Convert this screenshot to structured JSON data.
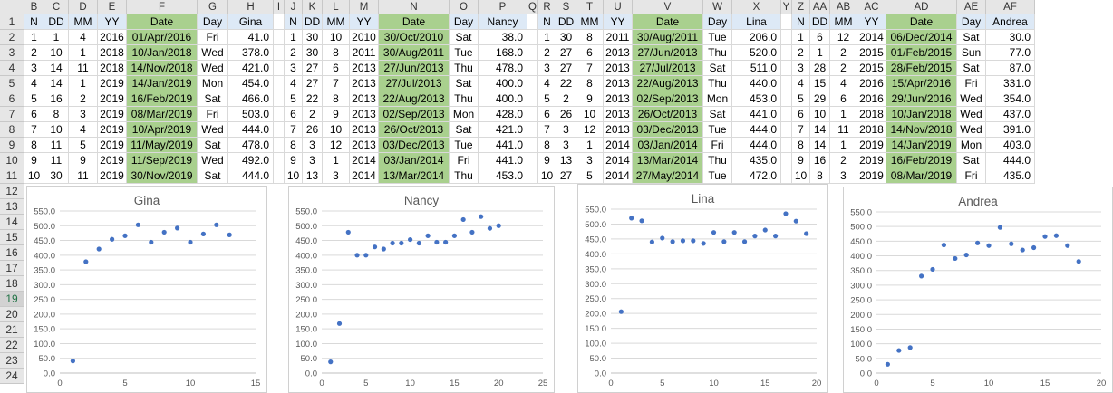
{
  "column_headers": [
    "B",
    "C",
    "D",
    "E",
    "F",
    "G",
    "H",
    "I",
    "J",
    "K",
    "L",
    "M",
    "N",
    "O",
    "P",
    "Q",
    "R",
    "S",
    "T",
    "U",
    "V",
    "W",
    "X",
    "Y",
    "Z",
    "AA",
    "AB",
    "AC",
    "AD",
    "AE",
    "AF"
  ],
  "row_headers": [
    "1",
    "2",
    "3",
    "4",
    "5",
    "6",
    "7",
    "8",
    "9",
    "10",
    "11",
    "12",
    "13",
    "14",
    "15",
    "16",
    "17",
    "18",
    "19",
    "20",
    "21",
    "22",
    "23",
    "24"
  ],
  "selected_row": "19",
  "colors": {
    "header_fill": "#dde9f6",
    "date_fill": "#a9d08e",
    "marker": "#4472c4",
    "gridline": "#d9d9d9"
  },
  "tables": [
    {
      "headers": [
        "N",
        "DD",
        "MM",
        "YY",
        "Date",
        "Day",
        "Gina"
      ],
      "rows": [
        [
          "1",
          "1",
          "4",
          "2016",
          "01/Apr/2016",
          "Fri",
          "41.0"
        ],
        [
          "2",
          "10",
          "1",
          "2018",
          "10/Jan/2018",
          "Wed",
          "378.0"
        ],
        [
          "3",
          "14",
          "11",
          "2018",
          "14/Nov/2018",
          "Wed",
          "421.0"
        ],
        [
          "4",
          "14",
          "1",
          "2019",
          "14/Jan/2019",
          "Mon",
          "454.0"
        ],
        [
          "5",
          "16",
          "2",
          "2019",
          "16/Feb/2019",
          "Sat",
          "466.0"
        ],
        [
          "6",
          "8",
          "3",
          "2019",
          "08/Mar/2019",
          "Fri",
          "503.0"
        ],
        [
          "7",
          "10",
          "4",
          "2019",
          "10/Apr/2019",
          "Wed",
          "444.0"
        ],
        [
          "8",
          "11",
          "5",
          "2019",
          "11/May/2019",
          "Sat",
          "478.0"
        ],
        [
          "9",
          "11",
          "9",
          "2019",
          "11/Sep/2019",
          "Wed",
          "492.0"
        ],
        [
          "10",
          "30",
          "11",
          "2019",
          "30/Nov/2019",
          "Sat",
          "444.0"
        ]
      ]
    },
    {
      "headers": [
        "N",
        "DD",
        "MM",
        "YY",
        "Date",
        "Day",
        "Nancy"
      ],
      "rows": [
        [
          "1",
          "30",
          "10",
          "2010",
          "30/Oct/2010",
          "Sat",
          "38.0"
        ],
        [
          "2",
          "30",
          "8",
          "2011",
          "30/Aug/2011",
          "Tue",
          "168.0"
        ],
        [
          "3",
          "27",
          "6",
          "2013",
          "27/Jun/2013",
          "Thu",
          "478.0"
        ],
        [
          "4",
          "27",
          "7",
          "2013",
          "27/Jul/2013",
          "Sat",
          "400.0"
        ],
        [
          "5",
          "22",
          "8",
          "2013",
          "22/Aug/2013",
          "Thu",
          "400.0"
        ],
        [
          "6",
          "2",
          "9",
          "2013",
          "02/Sep/2013",
          "Mon",
          "428.0"
        ],
        [
          "7",
          "26",
          "10",
          "2013",
          "26/Oct/2013",
          "Sat",
          "421.0"
        ],
        [
          "8",
          "3",
          "12",
          "2013",
          "03/Dec/2013",
          "Tue",
          "441.0"
        ],
        [
          "9",
          "3",
          "1",
          "2014",
          "03/Jan/2014",
          "Fri",
          "441.0"
        ],
        [
          "10",
          "13",
          "3",
          "2014",
          "13/Mar/2014",
          "Thu",
          "453.0"
        ]
      ]
    },
    {
      "headers": [
        "N",
        "DD",
        "MM",
        "YY",
        "Date",
        "Day",
        "Lina"
      ],
      "rows": [
        [
          "1",
          "30",
          "8",
          "2011",
          "30/Aug/2011",
          "Tue",
          "206.0"
        ],
        [
          "2",
          "27",
          "6",
          "2013",
          "27/Jun/2013",
          "Thu",
          "520.0"
        ],
        [
          "3",
          "27",
          "7",
          "2013",
          "27/Jul/2013",
          "Sat",
          "511.0"
        ],
        [
          "4",
          "22",
          "8",
          "2013",
          "22/Aug/2013",
          "Thu",
          "440.0"
        ],
        [
          "5",
          "2",
          "9",
          "2013",
          "02/Sep/2013",
          "Mon",
          "453.0"
        ],
        [
          "6",
          "26",
          "10",
          "2013",
          "26/Oct/2013",
          "Sat",
          "441.0"
        ],
        [
          "7",
          "3",
          "12",
          "2013",
          "03/Dec/2013",
          "Tue",
          "444.0"
        ],
        [
          "8",
          "3",
          "1",
          "2014",
          "03/Jan/2014",
          "Fri",
          "444.0"
        ],
        [
          "9",
          "13",
          "3",
          "2014",
          "13/Mar/2014",
          "Thu",
          "435.0"
        ],
        [
          "10",
          "27",
          "5",
          "2014",
          "27/May/2014",
          "Tue",
          "472.0"
        ]
      ]
    },
    {
      "headers": [
        "N",
        "DD",
        "MM",
        "YY",
        "Date",
        "Day",
        "Andrea"
      ],
      "rows": [
        [
          "1",
          "6",
          "12",
          "2014",
          "06/Dec/2014",
          "Sat",
          "30.0"
        ],
        [
          "2",
          "1",
          "2",
          "2015",
          "01/Feb/2015",
          "Sun",
          "77.0"
        ],
        [
          "3",
          "28",
          "2",
          "2015",
          "28/Feb/2015",
          "Sat",
          "87.0"
        ],
        [
          "4",
          "15",
          "4",
          "2016",
          "15/Apr/2016",
          "Fri",
          "331.0"
        ],
        [
          "5",
          "29",
          "6",
          "2016",
          "29/Jun/2016",
          "Wed",
          "354.0"
        ],
        [
          "6",
          "10",
          "1",
          "2018",
          "10/Jan/2018",
          "Wed",
          "437.0"
        ],
        [
          "7",
          "14",
          "11",
          "2018",
          "14/Nov/2018",
          "Wed",
          "391.0"
        ],
        [
          "8",
          "14",
          "1",
          "2019",
          "14/Jan/2019",
          "Mon",
          "403.0"
        ],
        [
          "9",
          "16",
          "2",
          "2019",
          "16/Feb/2019",
          "Sat",
          "444.0"
        ],
        [
          "10",
          "8",
          "3",
          "2019",
          "08/Mar/2019",
          "Fri",
          "435.0"
        ]
      ]
    }
  ],
  "chart_data": [
    {
      "type": "scatter",
      "title": "Gina",
      "xlabel": "",
      "ylabel": "",
      "xlim": [
        0,
        15
      ],
      "xticks": [
        "0",
        "5",
        "10",
        "15"
      ],
      "ylim": [
        0,
        550
      ],
      "yticks": [
        "0.0",
        "50.0",
        "100.0",
        "150.0",
        "200.0",
        "250.0",
        "300.0",
        "350.0",
        "400.0",
        "450.0",
        "500.0",
        "550.0"
      ],
      "grid": true,
      "legend": "none",
      "x": [
        1,
        2,
        3,
        4,
        5,
        6,
        7,
        8,
        9,
        10,
        11,
        12,
        13
      ],
      "y": [
        41,
        378,
        421,
        454,
        466,
        503,
        444,
        478,
        492,
        444,
        472,
        503,
        469
      ]
    },
    {
      "type": "scatter",
      "title": "Nancy",
      "xlabel": "",
      "ylabel": "",
      "xlim": [
        0,
        25
      ],
      "xticks": [
        "0",
        "5",
        "10",
        "15",
        "20",
        "25"
      ],
      "ylim": [
        0,
        550
      ],
      "yticks": [
        "0.0",
        "50.0",
        "100.0",
        "150.0",
        "200.0",
        "250.0",
        "300.0",
        "350.0",
        "400.0",
        "450.0",
        "500.0",
        "550.0"
      ],
      "grid": true,
      "legend": "none",
      "x": [
        1,
        2,
        3,
        4,
        5,
        6,
        7,
        8,
        9,
        10,
        11,
        12,
        13,
        14,
        15,
        16,
        17,
        18,
        19,
        20
      ],
      "y": [
        38,
        168,
        478,
        400,
        400,
        428,
        421,
        441,
        441,
        453,
        441,
        466,
        444,
        444,
        466,
        521,
        478,
        531,
        491,
        500
      ]
    },
    {
      "type": "scatter",
      "title": "Lina",
      "xlabel": "",
      "ylabel": "",
      "xlim": [
        0,
        20
      ],
      "xticks": [
        "0",
        "5",
        "10",
        "15",
        "20"
      ],
      "ylim": [
        0,
        550
      ],
      "yticks": [
        "0.0",
        "50.0",
        "100.0",
        "150.0",
        "200.0",
        "250.0",
        "300.0",
        "350.0",
        "400.0",
        "450.0",
        "500.0",
        "550.0"
      ],
      "grid": true,
      "legend": "none",
      "x": [
        1,
        2,
        3,
        4,
        5,
        6,
        7,
        8,
        9,
        10,
        11,
        12,
        13,
        14,
        15,
        16,
        17,
        18,
        19
      ],
      "y": [
        206,
        520,
        511,
        440,
        453,
        441,
        444,
        444,
        435,
        472,
        441,
        472,
        441,
        460,
        480,
        460,
        535,
        510,
        468
      ]
    },
    {
      "type": "scatter",
      "title": "Andrea",
      "xlabel": "",
      "ylabel": "",
      "xlim": [
        0,
        20
      ],
      "xticks": [
        "0",
        "5",
        "10",
        "15",
        "20"
      ],
      "ylim": [
        0,
        550
      ],
      "yticks": [
        "0.0",
        "50.0",
        "100.0",
        "150.0",
        "200.0",
        "250.0",
        "300.0",
        "350.0",
        "400.0",
        "450.0",
        "500.0",
        "550.0"
      ],
      "grid": true,
      "legend": "none",
      "x": [
        1,
        2,
        3,
        4,
        5,
        6,
        7,
        8,
        9,
        10,
        11,
        12,
        13,
        14,
        15,
        16,
        17,
        18
      ],
      "y": [
        30,
        77,
        87,
        331,
        354,
        437,
        391,
        403,
        444,
        435,
        497,
        441,
        420,
        428,
        466,
        469,
        435,
        381
      ]
    }
  ]
}
